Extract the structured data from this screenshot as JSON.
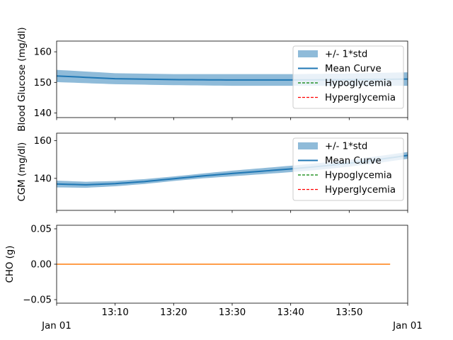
{
  "chart_data": [
    {
      "type": "area",
      "ylabel": "Blood Glucose (mg/dl)",
      "ylim": [
        138.5,
        163.5
      ],
      "yticks": [
        140,
        150,
        160
      ],
      "show_xticklabels": false,
      "legend": {
        "placement": "top-right",
        "entries": [
          "+/- 1*std",
          "Mean Curve",
          "Hypoglycemia",
          "Hyperglycemia"
        ]
      },
      "series": [
        {
          "name": "Mean Curve",
          "x": [
            0,
            10,
            20,
            30,
            40,
            50,
            60
          ],
          "values": [
            152.1,
            151.2,
            150.9,
            150.8,
            150.8,
            150.9,
            151.1
          ]
        },
        {
          "name": "+/- 1*std",
          "x": [
            0,
            10,
            20,
            30,
            40,
            50,
            60
          ],
          "values": [
            152.1,
            151.2,
            150.9,
            150.8,
            150.8,
            150.9,
            151.1
          ],
          "std": [
            2.0,
            1.8,
            1.8,
            1.9,
            1.9,
            2.0,
            2.2
          ]
        }
      ],
      "colors": {
        "mean": "#1f77b4",
        "band": "#1f77b4",
        "hypo": "#008000",
        "hyper": "#ff0000"
      }
    },
    {
      "type": "area",
      "ylabel": "CGM (mg/dl)",
      "ylim": [
        123,
        164
      ],
      "yticks": [
        140,
        160
      ],
      "show_xticklabels": false,
      "legend": {
        "placement": "top-right",
        "entries": [
          "+/- 1*std",
          "Mean Curve",
          "Hypoglycemia",
          "Hyperglycemia"
        ]
      },
      "series": [
        {
          "name": "Mean Curve",
          "x": [
            0,
            5,
            10,
            15,
            20,
            25,
            30,
            35,
            40,
            45,
            50,
            55,
            60
          ],
          "values": [
            137.0,
            136.6,
            137.2,
            138.3,
            139.8,
            141.3,
            142.6,
            143.8,
            145.0,
            146.4,
            148.0,
            150.0,
            152.2
          ]
        },
        {
          "name": "+/- 1*std",
          "x": [
            0,
            5,
            10,
            15,
            20,
            25,
            30,
            35,
            40,
            45,
            50,
            55,
            60
          ],
          "values": [
            137.0,
            136.6,
            137.2,
            138.3,
            139.8,
            141.3,
            142.6,
            143.8,
            145.0,
            146.4,
            148.0,
            150.0,
            152.2
          ],
          "std": [
            1.8,
            1.6,
            1.4,
            1.3,
            1.2,
            1.3,
            1.5,
            1.6,
            1.7,
            1.8,
            1.8,
            1.8,
            1.8
          ]
        }
      ],
      "colors": {
        "mean": "#1f77b4",
        "band": "#1f77b4",
        "hypo": "#008000",
        "hyper": "#ff0000"
      }
    },
    {
      "type": "line",
      "ylabel": "CHO (g)",
      "ylim": [
        -0.055,
        0.055
      ],
      "yticks": [
        -0.05,
        0.0,
        0.05
      ],
      "ytick_labels": [
        "−0.05",
        "0.00",
        "0.05"
      ],
      "xlim_minutes": [
        0,
        60
      ],
      "xticks_minutes": [
        10,
        20,
        30,
        40,
        50
      ],
      "xtick_labels": [
        "13:10",
        "13:20",
        "13:30",
        "13:40",
        "13:50"
      ],
      "xaxis_secondary_labels": [
        "Jan 01",
        "Jan 01"
      ],
      "series": [
        {
          "x": [
            0,
            57
          ],
          "values": [
            0,
            0
          ],
          "color": "#ff7f0e"
        }
      ]
    }
  ]
}
